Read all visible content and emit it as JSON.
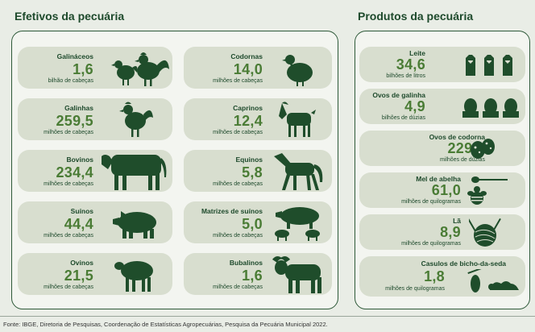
{
  "left": {
    "title": "Efetivos da pecuária",
    "items": [
      {
        "name": "Galináceos",
        "value": "1,6",
        "unit": "bilhão de cabeças",
        "icon": "chicken-rooster-icon"
      },
      {
        "name": "Codornas",
        "value": "14,0",
        "unit": "milhões de cabeças",
        "icon": "quail-icon"
      },
      {
        "name": "Galinhas",
        "value": "259,5",
        "unit": "milhões de cabeças",
        "icon": "hen-icon"
      },
      {
        "name": "Caprinos",
        "value": "12,4",
        "unit": "milhões de cabeças",
        "icon": "goat-icon"
      },
      {
        "name": "Bovinos",
        "value": "234,4",
        "unit": "milhões de cabeças",
        "icon": "cow-icon"
      },
      {
        "name": "Equinos",
        "value": "5,8",
        "unit": "milhões de cabeças",
        "icon": "horse-icon"
      },
      {
        "name": "Suínos",
        "value": "44,4",
        "unit": "milhões de cabeças",
        "icon": "pig-icon"
      },
      {
        "name": "Matrizes de suínos",
        "value": "5,0",
        "unit": "milhões de cabeças",
        "icon": "sow-piglets-icon"
      },
      {
        "name": "Ovinos",
        "value": "21,5",
        "unit": "milhões de cabeças",
        "icon": "sheep-icon"
      },
      {
        "name": "Bubalinos",
        "value": "1,6",
        "unit": "milhões de cabeças",
        "icon": "buffalo-icon"
      }
    ]
  },
  "right": {
    "title": "Produtos da pecuária",
    "items": [
      {
        "name": "Leite",
        "value": "34,6",
        "unit": "bilhões de litros",
        "icon": "milk-bottles-icon"
      },
      {
        "name": "Ovos de galinha",
        "value": "4,9",
        "unit": "bilhões de dúzias",
        "icon": "eggs-icon"
      },
      {
        "name": "Ovos de codorna",
        "value": "229,2",
        "unit": "milhões de dúzias",
        "icon": "quail-eggs-icon"
      },
      {
        "name": "Mel de abelha",
        "value": "61,0",
        "unit": "milhões de quilogramas",
        "icon": "honey-bee-icon"
      },
      {
        "name": "Lã",
        "value": "8,9",
        "unit": "milhões de quilogramas",
        "icon": "yarn-ball-icon"
      },
      {
        "name": "Casulos de bicho-da-seda",
        "value": "1,8",
        "unit": "milhões de quilogramas",
        "icon": "silkworm-cocoon-icon"
      }
    ]
  },
  "footer": "Fonte: IBGE, Diretoria de Pesquisas, Coordenação de Estatísticas Agropecuárias, Pesquisa da Pecuária Municipal 2022."
}
